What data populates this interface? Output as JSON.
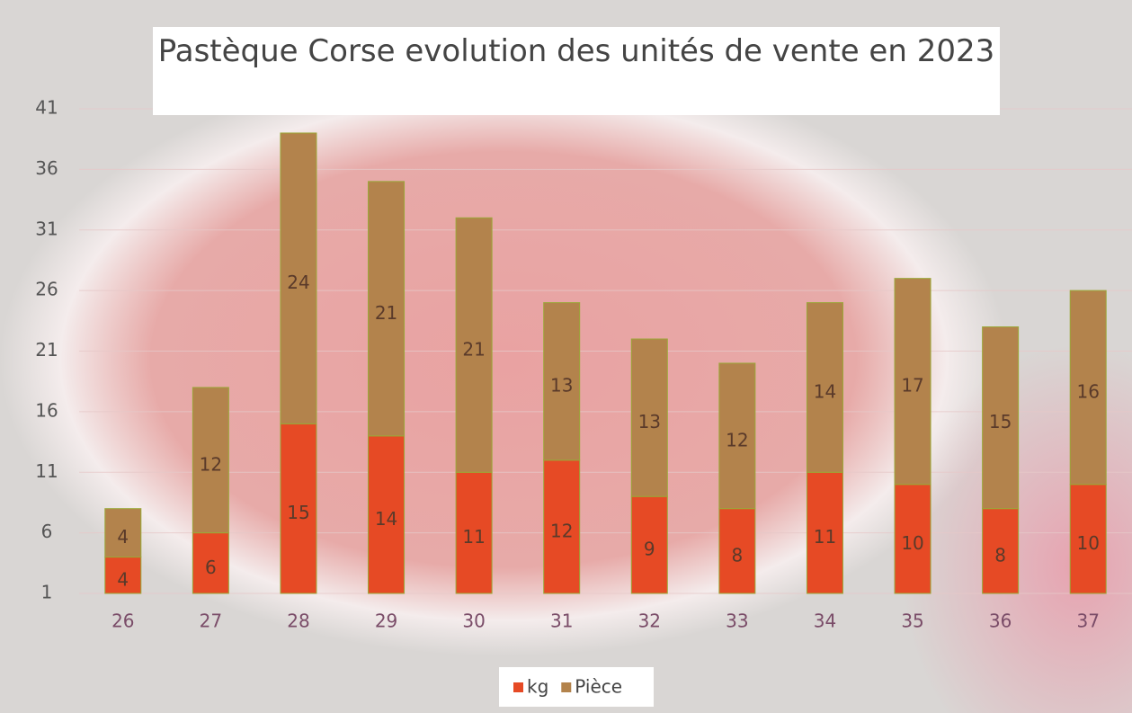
{
  "chart_data": {
    "type": "bar",
    "stacked": true,
    "title": "Pastèque Corse evolution des unités de vente en 2023",
    "categories": [
      "26",
      "27",
      "28",
      "29",
      "30",
      "31",
      "32",
      "33",
      "34",
      "35",
      "36",
      "37"
    ],
    "series": [
      {
        "name": "kg",
        "color": "#e64a25",
        "values": [
          4,
          6,
          15,
          14,
          11,
          12,
          9,
          8,
          11,
          10,
          8,
          10
        ]
      },
      {
        "name": "Pièce",
        "color": "#b3834c",
        "values": [
          4,
          12,
          24,
          21,
          21,
          13,
          13,
          12,
          14,
          17,
          15,
          16
        ]
      }
    ],
    "ylim": [
      1,
      41
    ],
    "yticks": [
      1,
      6,
      11,
      16,
      21,
      26,
      31,
      36,
      41
    ],
    "grid": true,
    "legend": "bottom"
  }
}
